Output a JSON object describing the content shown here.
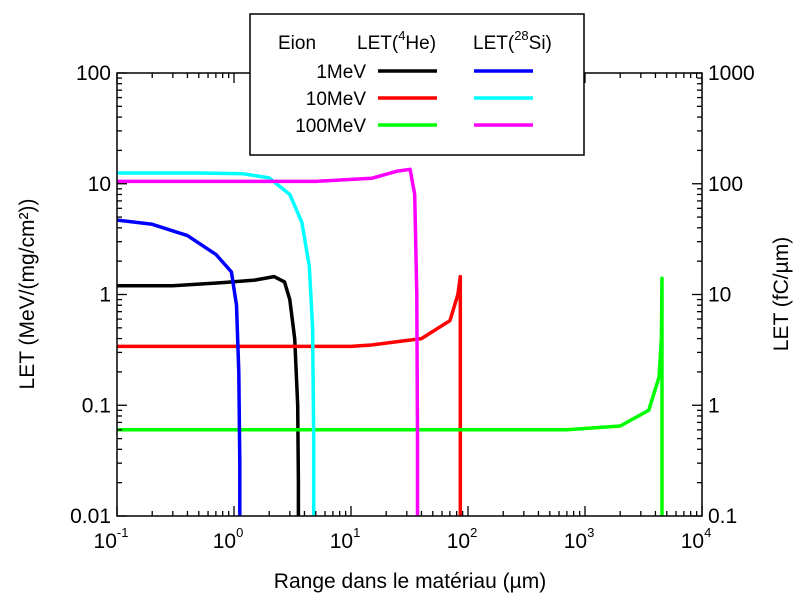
{
  "chart_data": {
    "type": "line",
    "xlabel": "Range dans le matériau (µm)",
    "ylabel": "LET (MeV/(mg/cm²))",
    "y2label": "LET (fC/µm)",
    "x_scale": "log",
    "y_scale": "log",
    "y2_scale": "log",
    "xlim": [
      0.1,
      10000
    ],
    "ylim": [
      0.01,
      100
    ],
    "y2lim": [
      0.1,
      1000
    ],
    "x_ticks": [
      {
        "base": "10",
        "exp": "-1"
      },
      {
        "base": "10",
        "exp": "0"
      },
      {
        "base": "10",
        "exp": "1"
      },
      {
        "base": "10",
        "exp": "2"
      },
      {
        "base": "10",
        "exp": "3"
      },
      {
        "base": "10",
        "exp": "4"
      }
    ],
    "y_tick_labels": [
      "0.01",
      "0.1",
      "1",
      "10",
      "100"
    ],
    "y2_tick_labels": [
      "0.1",
      "1",
      "10",
      "100",
      "1000"
    ],
    "grid": false,
    "legend": {
      "placement": "top-center",
      "col_eion": "Eion",
      "col_he": {
        "prefix": "LET(",
        "sup": "4",
        "suffix": "He)"
      },
      "col_si": {
        "prefix": "LET(",
        "sup": "28",
        "suffix": "Si)"
      },
      "rows": [
        {
          "energy": "1MeV",
          "he_color": "#000000",
          "si_color": "#0000ff"
        },
        {
          "energy": "10MeV",
          "he_color": "#ff0000",
          "si_color": "#00ffff"
        },
        {
          "energy": "100MeV",
          "he_color": "#00ff00",
          "si_color": "#ff00ff"
        }
      ]
    },
    "series": [
      {
        "ion": "He-4",
        "energy": "1MeV",
        "color": "#000000",
        "x": [
          0.1,
          0.3,
          0.8,
          1.5,
          2.2,
          2.7,
          3.0,
          3.3,
          3.5,
          3.55,
          3.55
        ],
        "y": [
          1.2,
          1.2,
          1.28,
          1.35,
          1.45,
          1.3,
          0.9,
          0.4,
          0.1,
          0.02,
          0.01
        ]
      },
      {
        "ion": "He-4",
        "energy": "10MeV",
        "color": "#ff0000",
        "x": [
          0.1,
          1,
          10,
          15,
          40,
          70,
          82,
          86,
          86,
          86
        ],
        "y": [
          0.34,
          0.34,
          0.34,
          0.35,
          0.4,
          0.58,
          1.0,
          1.45,
          0.1,
          0.01
        ]
      },
      {
        "ion": "He-4",
        "energy": "100MeV",
        "color": "#00ff00",
        "x": [
          0.1,
          10,
          700,
          2000,
          3500,
          4300,
          4500,
          4550,
          4550,
          4550
        ],
        "y": [
          0.06,
          0.06,
          0.06,
          0.065,
          0.09,
          0.18,
          0.4,
          1.4,
          0.1,
          0.01
        ]
      },
      {
        "ion": "Si-28",
        "energy": "1MeV",
        "color": "#0000ff",
        "x": [
          0.1,
          0.2,
          0.4,
          0.7,
          0.95,
          1.05,
          1.1,
          1.12,
          1.12
        ],
        "y": [
          4.7,
          4.3,
          3.4,
          2.3,
          1.6,
          0.8,
          0.2,
          0.03,
          0.01
        ]
      },
      {
        "ion": "Si-28",
        "energy": "10MeV",
        "color": "#00ffff",
        "x": [
          0.1,
          0.5,
          1.2,
          2.0,
          3.0,
          3.8,
          4.4,
          4.7,
          4.8,
          4.8
        ],
        "y": [
          12.5,
          12.5,
          12.3,
          11.3,
          8.0,
          4.5,
          1.8,
          0.5,
          0.05,
          0.01
        ]
      },
      {
        "ion": "Si-28",
        "energy": "100MeV",
        "color": "#ff00ff",
        "x": [
          0.1,
          5,
          15,
          25,
          32,
          35,
          36.5,
          37,
          37
        ],
        "y": [
          10.5,
          10.5,
          11.2,
          13.0,
          13.5,
          8.0,
          1.0,
          0.05,
          0.01
        ]
      }
    ]
  }
}
